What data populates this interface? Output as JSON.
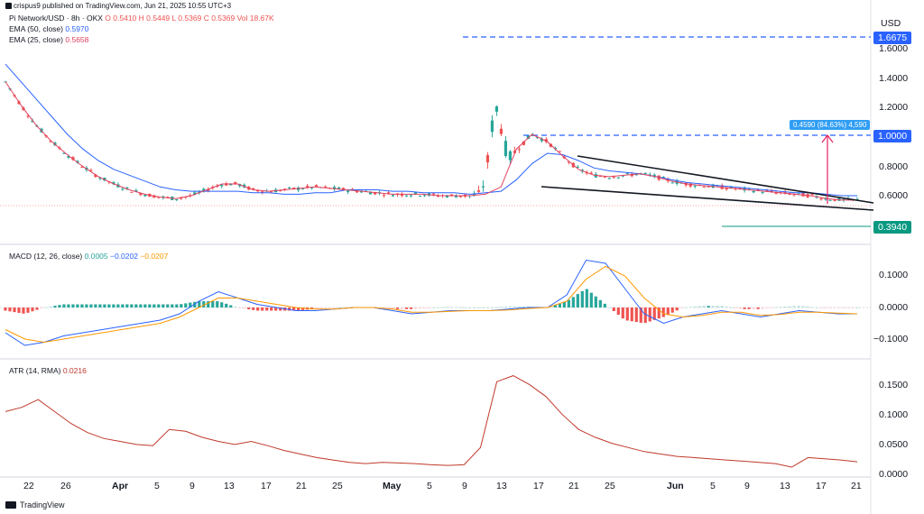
{
  "header": {
    "publisher": "crispus9 published on TradingView.com, Jun 21, 2025 10:55 UTC+3"
  },
  "price_pane": {
    "symbol_line": {
      "name": "Pi Network/USD · 8h · OKX",
      "o": "O 0.5410",
      "h": "H 0.5449",
      "l": "L 0.5369",
      "c": "C 0.5369",
      "vol": "Vol 18.67K"
    },
    "ema50": {
      "label": "EMA (50, close)",
      "value": "0.5970",
      "color": "#2962ff"
    },
    "ema25": {
      "label": "EMA (25, close)",
      "value": "0.5658",
      "color": "#e04060"
    },
    "currency": "USD",
    "y_ticks": [
      "1.6000",
      "1.4000",
      "1.2000",
      "1.0000",
      "0.8000",
      "0.6000"
    ],
    "tag_high": "1.6675",
    "tag_target": "1.0000",
    "tag_low": "0.3940",
    "measure_label": "0.4590 (84.63%) 4,590"
  },
  "macd_pane": {
    "label": "MACD (12, 26, close)",
    "hist": "0.0005",
    "macd": "−0.0202",
    "signal": "−0.0207",
    "y_ticks": [
      "0.1000",
      "0.0000",
      "−0.1000"
    ]
  },
  "atr_pane": {
    "label": "ATR (14, RMA)",
    "value": "0.0216",
    "y_ticks": [
      "0.1500",
      "0.1000",
      "0.0500",
      "0.0000"
    ]
  },
  "x_axis": {
    "labels": [
      "22",
      "26",
      "Apr",
      "5",
      "9",
      "13",
      "17",
      "21",
      "25",
      "May",
      "5",
      "9",
      "13",
      "17",
      "21",
      "25",
      "Jun",
      "5",
      "9",
      "13",
      "17",
      "21"
    ]
  },
  "footer": {
    "brand": "TradingView"
  },
  "colors": {
    "up": "#26a69a",
    "down": "#ef5350",
    "macd": "#2962ff",
    "signal": "#ff9800",
    "atr": "#c0392b",
    "tag_blue": "#2962ff",
    "tag_green": "#089981"
  },
  "chart_data": {
    "type": "line",
    "title": "Pi Network/USD · 8h · OKX",
    "x_labels": [
      "22",
      "26",
      "Apr",
      "5",
      "9",
      "13",
      "17",
      "21",
      "25",
      "May",
      "5",
      "9",
      "13",
      "17",
      "21",
      "25",
      "Jun",
      "5",
      "9",
      "13",
      "17",
      "21"
    ],
    "series": [
      {
        "name": "EMA (50, close)",
        "values": [
          1.5,
          1.38,
          1.26,
          1.14,
          1.02,
          0.92,
          0.84,
          0.78,
          0.74,
          0.7,
          0.66,
          0.64,
          0.63,
          0.63,
          0.63,
          0.63,
          0.62,
          0.62,
          0.61,
          0.61,
          0.62,
          0.62,
          0.64,
          0.64,
          0.64,
          0.63,
          0.63,
          0.62,
          0.62,
          0.62,
          0.61,
          0.62,
          0.63,
          0.71,
          0.82,
          0.89,
          0.88,
          0.84,
          0.79,
          0.77,
          0.76,
          0.75,
          0.73,
          0.71,
          0.69,
          0.68,
          0.67,
          0.66,
          0.65,
          0.64,
          0.63,
          0.62,
          0.62,
          0.61,
          0.6,
          0.6
        ]
      },
      {
        "name": "EMA (25, close)",
        "values": [
          1.38,
          1.22,
          1.08,
          0.97,
          0.88,
          0.8,
          0.73,
          0.68,
          0.64,
          0.61,
          0.59,
          0.58,
          0.6,
          0.64,
          0.68,
          0.68,
          0.64,
          0.63,
          0.64,
          0.65,
          0.66,
          0.65,
          0.64,
          0.63,
          0.62,
          0.61,
          0.61,
          0.61,
          0.6,
          0.6,
          0.6,
          0.61,
          0.66,
          0.92,
          1.02,
          0.97,
          0.87,
          0.78,
          0.74,
          0.73,
          0.74,
          0.75,
          0.73,
          0.7,
          0.68,
          0.67,
          0.66,
          0.65,
          0.64,
          0.63,
          0.62,
          0.61,
          0.6,
          0.58,
          0.57,
          0.57
        ]
      },
      {
        "name": "MACD",
        "values": [
          -0.08,
          -0.12,
          -0.11,
          -0.09,
          -0.08,
          -0.07,
          -0.06,
          -0.05,
          -0.04,
          -0.02,
          0.02,
          0.05,
          0.03,
          0.01,
          0.0,
          -0.01,
          -0.01,
          -0.005,
          0.0,
          0.0,
          -0.01,
          -0.02,
          -0.015,
          -0.01,
          -0.01,
          -0.01,
          -0.005,
          0.0,
          0.0,
          0.04,
          0.15,
          0.14,
          0.06,
          -0.02,
          -0.05,
          -0.03,
          -0.02,
          -0.01,
          -0.02,
          -0.03,
          -0.02,
          -0.01,
          -0.015,
          -0.02,
          -0.02
        ]
      },
      {
        "name": "Signal",
        "values": [
          -0.07,
          -0.1,
          -0.11,
          -0.1,
          -0.09,
          -0.08,
          -0.07,
          -0.06,
          -0.05,
          -0.03,
          0.0,
          0.03,
          0.03,
          0.02,
          0.01,
          0.0,
          -0.005,
          -0.005,
          0.0,
          0.0,
          -0.005,
          -0.015,
          -0.015,
          -0.012,
          -0.01,
          -0.01,
          -0.008,
          -0.003,
          0.0,
          0.02,
          0.09,
          0.13,
          0.1,
          0.03,
          -0.02,
          -0.03,
          -0.025,
          -0.015,
          -0.015,
          -0.025,
          -0.022,
          -0.015,
          -0.015,
          -0.018,
          -0.02
        ]
      },
      {
        "name": "ATR (14, RMA)",
        "values": [
          0.105,
          0.112,
          0.125,
          0.105,
          0.085,
          0.07,
          0.06,
          0.055,
          0.05,
          0.048,
          0.075,
          0.072,
          0.062,
          0.055,
          0.05,
          0.055,
          0.048,
          0.04,
          0.034,
          0.028,
          0.024,
          0.02,
          0.018,
          0.02,
          0.019,
          0.018,
          0.016,
          0.015,
          0.016,
          0.045,
          0.155,
          0.165,
          0.15,
          0.13,
          0.1,
          0.075,
          0.062,
          0.052,
          0.045,
          0.038,
          0.034,
          0.03,
          0.028,
          0.026,
          0.024,
          0.022,
          0.02,
          0.018,
          0.012,
          0.028,
          0.026,
          0.024,
          0.021
        ]
      }
    ],
    "annotations": [
      "1.6675",
      "1.0000",
      "0.3940",
      "0.4590 (84.63%) 4,590"
    ]
  }
}
